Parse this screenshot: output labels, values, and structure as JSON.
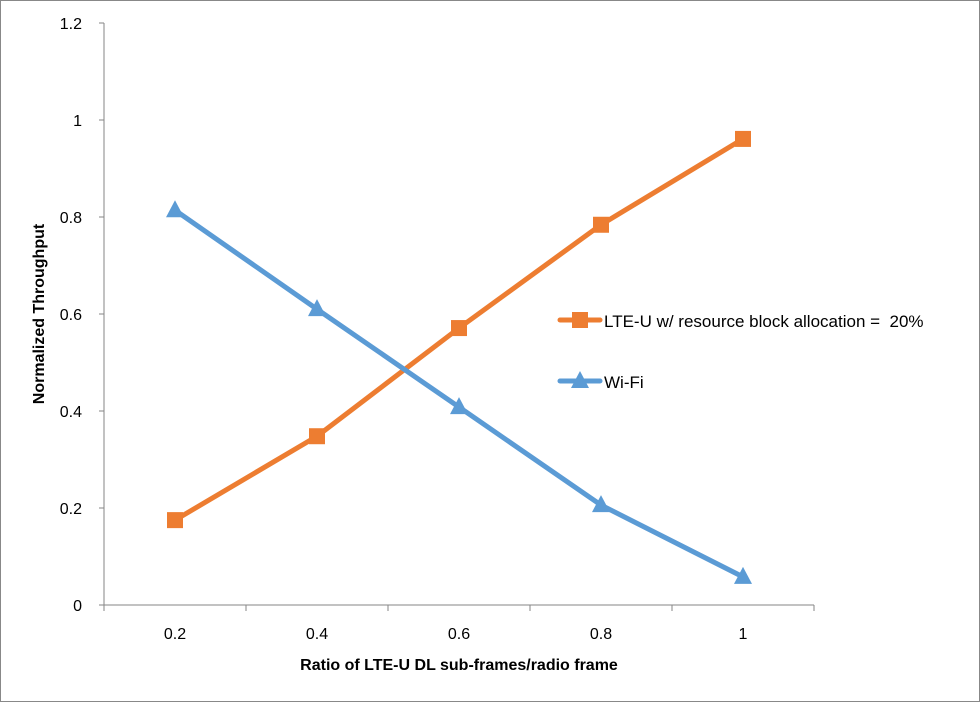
{
  "chart_data": {
    "type": "line",
    "title": "",
    "xlabel": "Ratio of LTE-U DL sub-frames/radio frame",
    "ylabel": "Normalized Throughput",
    "categories": [
      "0.2",
      "0.4",
      "0.6",
      "0.8",
      "1"
    ],
    "yticks": [
      "0",
      "0.2",
      "0.4",
      "0.6",
      "0.8",
      "1",
      "1.2"
    ],
    "ylim": [
      0,
      1.2
    ],
    "grid": false,
    "legend_position": "right",
    "series": [
      {
        "name": "LTE-U w/ resource block allocation =  20%",
        "marker": "square",
        "color": "#ED7D31",
        "values": [
          0.175,
          0.348,
          0.571,
          0.784,
          0.961
        ]
      },
      {
        "name": "Wi-Fi",
        "marker": "triangle",
        "color": "#5B9BD5",
        "values": [
          0.814,
          0.61,
          0.408,
          0.206,
          0.058
        ]
      }
    ]
  }
}
